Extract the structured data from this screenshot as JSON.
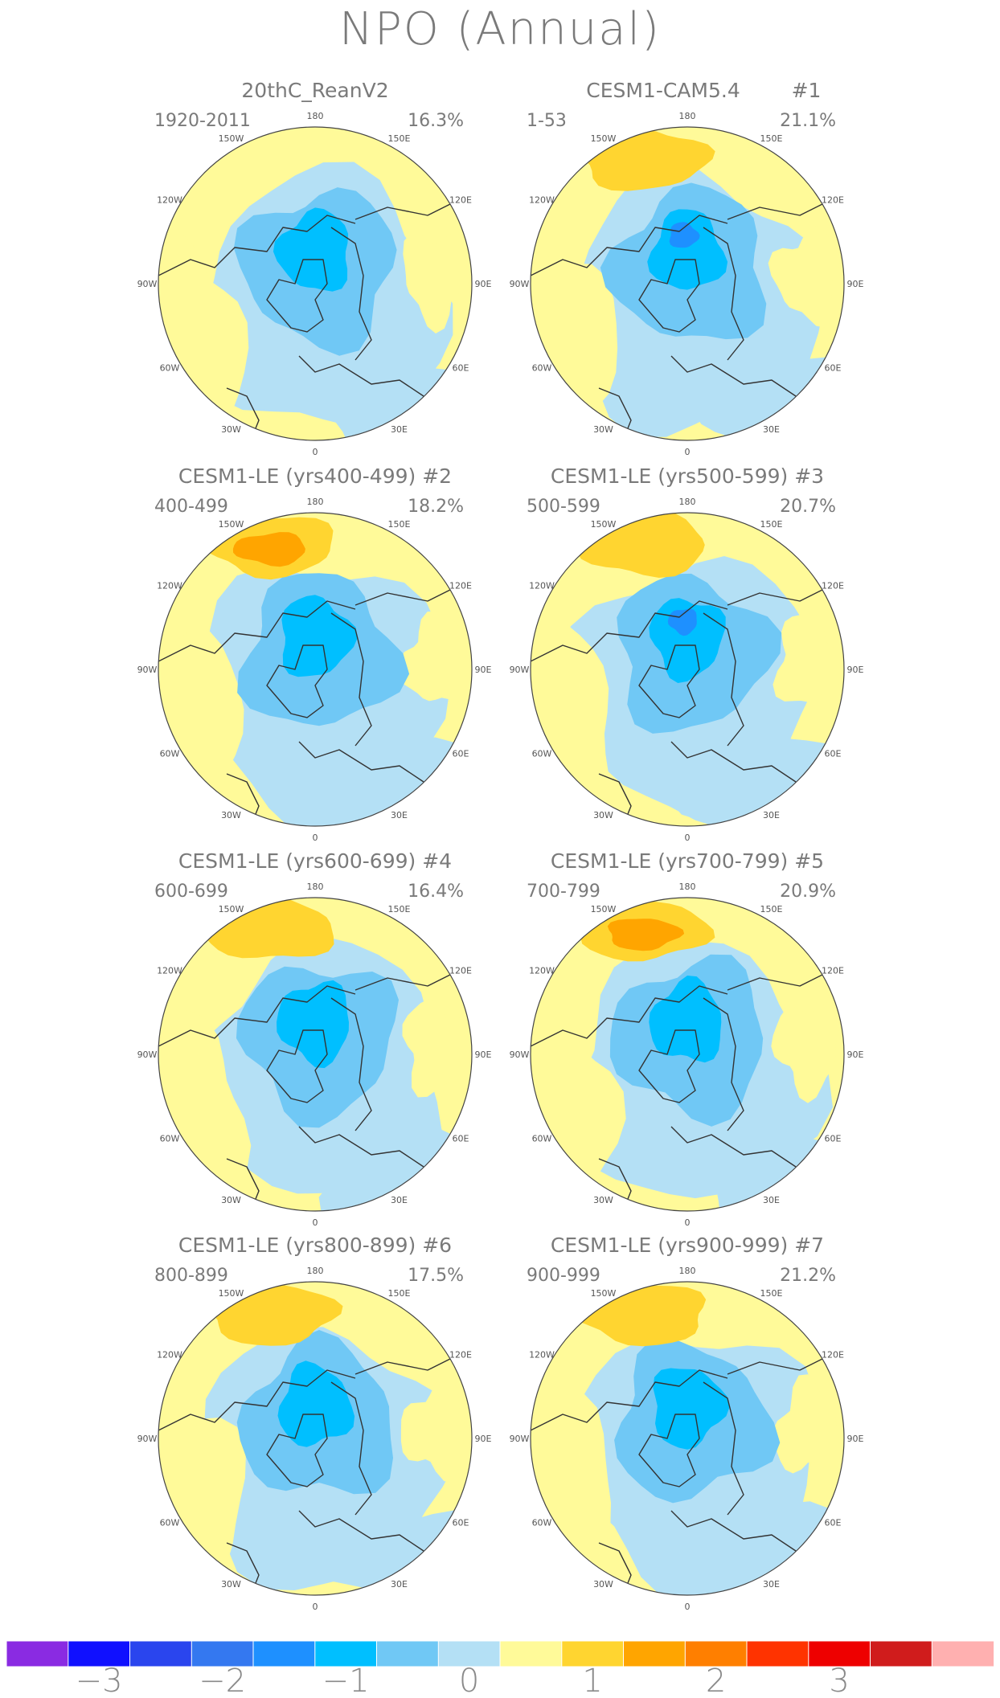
{
  "title": "NPO (Annual)",
  "colors": {
    "bg_yellow": "#fffa99",
    "pos1": "#ffd530",
    "pos2": "#ffa500",
    "neg1": "#b4e0f5",
    "neg2": "#70c8f5",
    "neg3": "#00bfff",
    "neg4": "#1e90ff",
    "outline": "#444444",
    "coast": "#333333"
  },
  "lon_labels": [
    "180",
    "150E",
    "120E",
    "90E",
    "60E",
    "30E",
    "0",
    "30W",
    "60W",
    "90W",
    "120W",
    "150W"
  ],
  "panels": [
    {
      "title": "20thC_ReanV2",
      "years": "1920-2011",
      "pct": "16.3%",
      "hash": "",
      "pos_strength": 0,
      "neg_strength": 3
    },
    {
      "title": "CESM1-CAM5.4",
      "years": "1-53",
      "pct": "21.1%",
      "hash": "#1",
      "pos_strength": 1,
      "neg_strength": 4
    },
    {
      "title": "CESM1-LE (yrs400-499) #2",
      "years": "400-499",
      "pct": "18.2%",
      "hash": "",
      "pos_strength": 2,
      "neg_strength": 3
    },
    {
      "title": "CESM1-LE (yrs500-599) #3",
      "years": "500-599",
      "pct": "20.7%",
      "hash": "",
      "pos_strength": 1,
      "neg_strength": 4
    },
    {
      "title": "CESM1-LE (yrs600-699) #4",
      "years": "600-699",
      "pct": "16.4%",
      "hash": "",
      "pos_strength": 1,
      "neg_strength": 3
    },
    {
      "title": "CESM1-LE (yrs700-799) #5",
      "years": "700-799",
      "pct": "20.9%",
      "hash": "",
      "pos_strength": 2,
      "neg_strength": 3
    },
    {
      "title": "CESM1-LE (yrs800-899) #6",
      "years": "800-899",
      "pct": "17.5%",
      "hash": "",
      "pos_strength": 1,
      "neg_strength": 3
    },
    {
      "title": "CESM1-LE (yrs900-999) #7",
      "years": "900-999",
      "pct": "21.2%",
      "hash": "",
      "pos_strength": 1,
      "neg_strength": 3
    }
  ],
  "colorbar": {
    "colors": [
      "#8a2be2",
      "#1010ff",
      "#2a45ee",
      "#3478f0",
      "#1e90ff",
      "#00bfff",
      "#70c8f5",
      "#b4e0f5",
      "#fffa99",
      "#ffd530",
      "#ffa500",
      "#ff7f00",
      "#ff3300",
      "#ee0000",
      "#d01c1c",
      "#ffb0b0"
    ],
    "labels": [
      "-3",
      "-2",
      "-1",
      "0",
      "1",
      "2",
      "3"
    ]
  }
}
